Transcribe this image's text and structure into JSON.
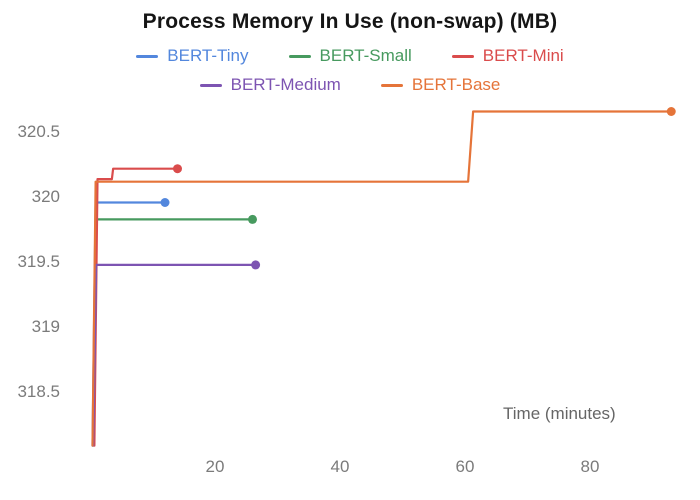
{
  "chart_data": {
    "type": "line",
    "title": "Process Memory In Use (non-swap) (MB)",
    "xlabel": "Time (minutes)",
    "ylabel": "",
    "x_ticks": [
      20,
      40,
      60,
      80
    ],
    "y_ticks": [
      318.5,
      319,
      319.5,
      320,
      320.5
    ],
    "xlim": [
      0,
      96
    ],
    "ylim": [
      318.0,
      320.85
    ],
    "grid": false,
    "legend_position": "top",
    "marker": "end-dot",
    "tick_color": "#7b7b7b",
    "series": [
      {
        "name": "BERT-Tiny",
        "color": "#5387DD",
        "points": [
          [
            0.4,
            318.08
          ],
          [
            0.9,
            319.95
          ],
          [
            12,
            319.95
          ]
        ]
      },
      {
        "name": "BERT-Small",
        "color": "#479A5F",
        "points": [
          [
            0.5,
            318.08
          ],
          [
            1.0,
            319.82
          ],
          [
            26,
            319.82
          ]
        ]
      },
      {
        "name": "BERT-Mini",
        "color": "#DA4C4C",
        "points": [
          [
            0.7,
            318.08
          ],
          [
            1.2,
            320.13
          ],
          [
            3.5,
            320.13
          ],
          [
            3.7,
            320.21
          ],
          [
            14,
            320.21
          ]
        ]
      },
      {
        "name": "BERT-Medium",
        "color": "#7D54B2",
        "points": [
          [
            0.5,
            318.08
          ],
          [
            1.0,
            319.47
          ],
          [
            26.5,
            319.47
          ]
        ]
      },
      {
        "name": "BERT-Base",
        "color": "#E57439",
        "points": [
          [
            0.4,
            318.08
          ],
          [
            0.9,
            320.11
          ],
          [
            60.5,
            320.11
          ],
          [
            61.3,
            320.65
          ],
          [
            93,
            320.65
          ]
        ]
      }
    ],
    "legend_rows": [
      [
        0,
        1,
        2
      ],
      [
        3,
        4
      ]
    ]
  }
}
